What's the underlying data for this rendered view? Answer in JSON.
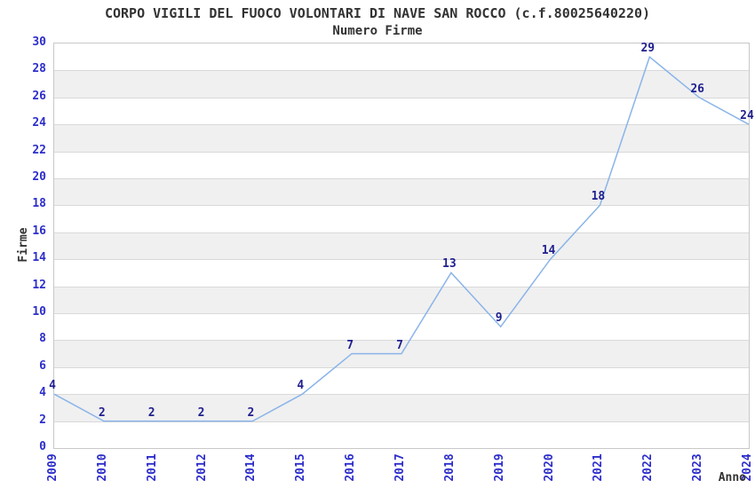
{
  "chart_data": {
    "type": "line",
    "title": "CORPO VIGILI DEL FUOCO VOLONTARI DI NAVE SAN ROCCO (c.f.80025640220)",
    "subtitle": "Numero Firme",
    "xlabel": "Anno",
    "ylabel": "Firme",
    "categories": [
      "2009",
      "2010",
      "2011",
      "2012",
      "2014",
      "2015",
      "2016",
      "2017",
      "2018",
      "2019",
      "2020",
      "2021",
      "2022",
      "2023",
      "2024"
    ],
    "values": [
      4,
      2,
      2,
      2,
      2,
      4,
      7,
      7,
      13,
      9,
      14,
      18,
      29,
      26,
      24
    ],
    "ylim": [
      0,
      30
    ],
    "ytick_step": 2,
    "grid": true,
    "legend": "none",
    "stripe_pattern": "alternating horizontal bands every 2 units, gray on 2-4, 6-8, 10-12, 14-16, 18-20, 22-24, 26-28",
    "colors": {
      "line": "#8ab4e8",
      "point_label": "#1f1f8f",
      "tick_label": "#2d2dcc",
      "title_text": "#333333",
      "stripe": "#f0f0f0",
      "grid": "#d9d9d9",
      "border": "#c8c8c8",
      "background": "#ffffff"
    }
  }
}
